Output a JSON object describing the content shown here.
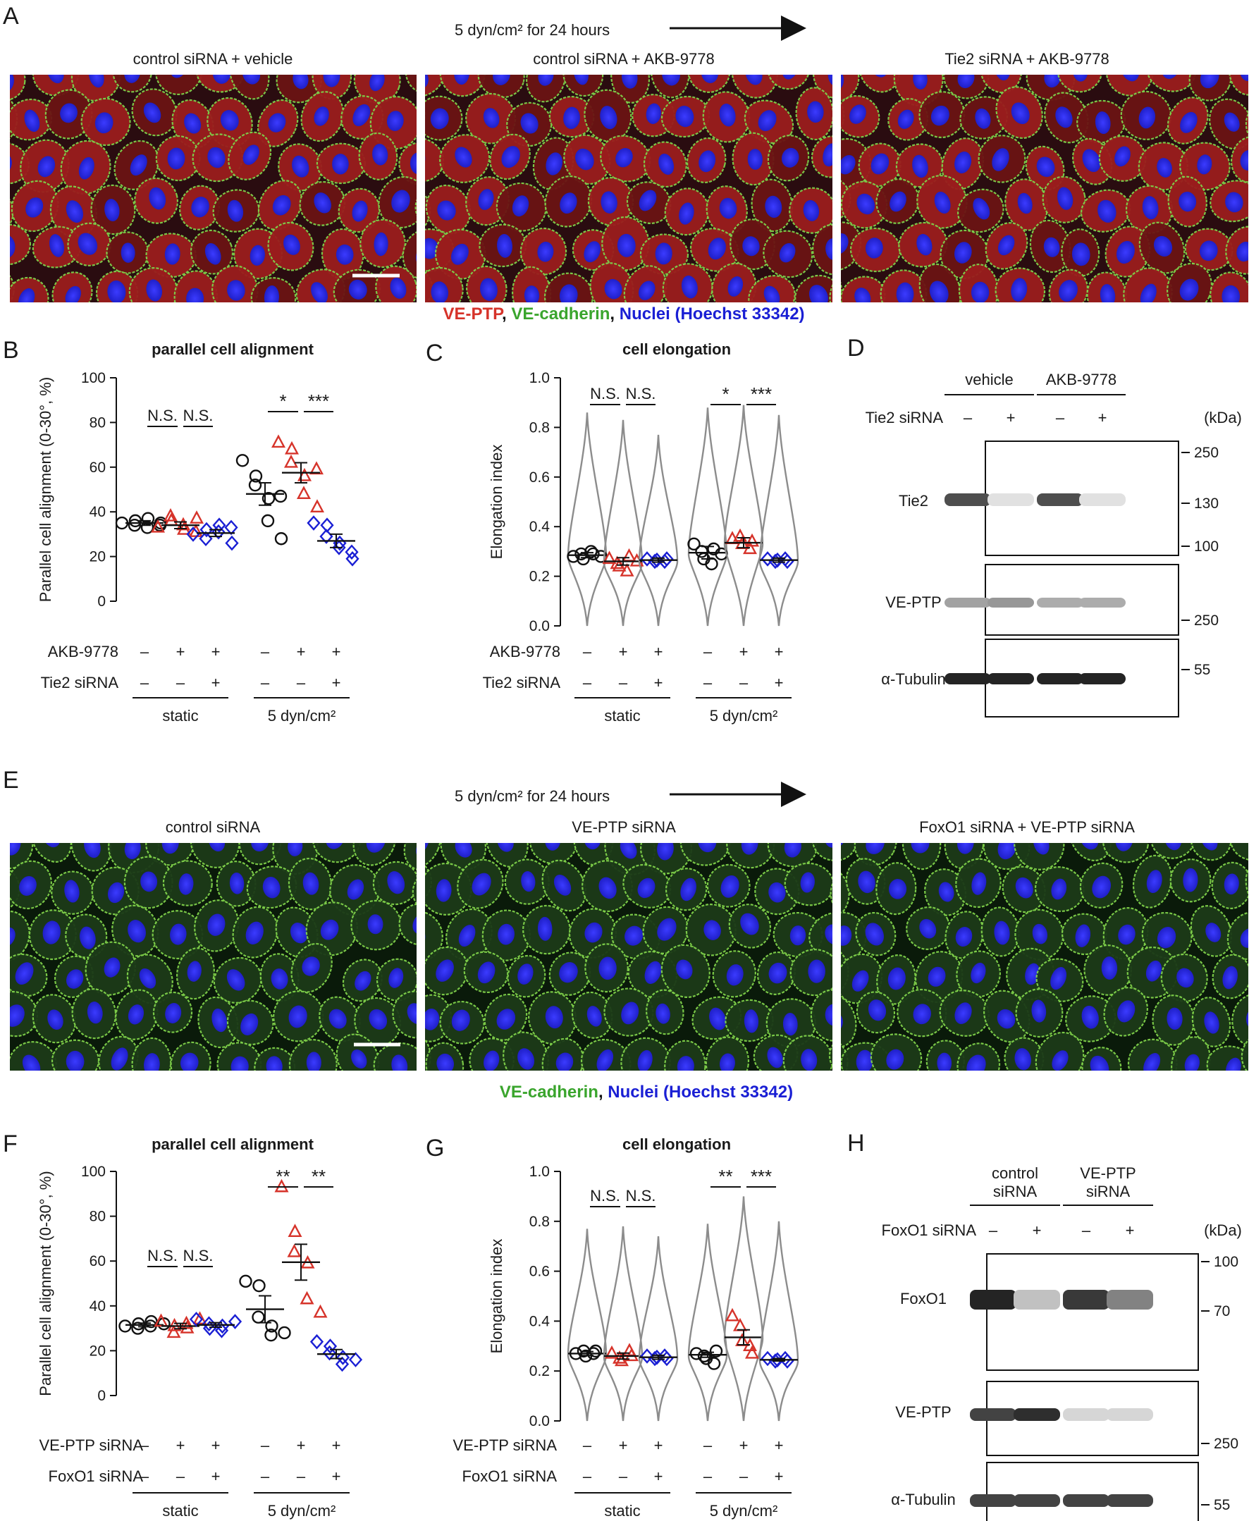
{
  "colors": {
    "red": "#d6332a",
    "green": "#3aa52d",
    "blue": "#1a1fd4",
    "black": "#111111",
    "violin": "#8c8c8c"
  },
  "panels": {
    "A": "A",
    "B": "B",
    "C": "C",
    "D": "D",
    "E": "E",
    "F": "F",
    "G": "G",
    "H": "H"
  },
  "top_flow": {
    "text": "5 dyn/cm² for 24 hours"
  },
  "imagesA": {
    "titles": [
      "control siRNA + vehicle",
      "control siRNA + AKB-9778",
      "Tie2 siRNA + AKB-9778"
    ],
    "legend": {
      "vep": "VE-PTP",
      "vec": "VE-cadherin",
      "nuc": "Nuclei (Hoechst 33342)",
      "sep": ", "
    }
  },
  "imagesE": {
    "flow": "5 dyn/cm² for 24 hours",
    "titles": [
      "control siRNA",
      "VE-PTP siRNA",
      "FoxO1 siRNA + VE-PTP siRNA"
    ],
    "legend": {
      "vec": "VE-cadherin",
      "nuc": "Nuclei (Hoechst 33342)",
      "sep": ", "
    }
  },
  "chart_data": [
    {
      "panel": "B",
      "type": "scatter",
      "title": "parallel cell alignment",
      "ylabel": "Parallel cell alignment  (0-30°, %)",
      "ylim": [
        0,
        100
      ],
      "yticks": [
        0,
        20,
        40,
        60,
        80,
        100
      ],
      "row_labels": [
        "AKB-9778",
        "Tie2 siRNA"
      ],
      "row_values": [
        [
          "–",
          "+",
          "+",
          "–",
          "+",
          "+"
        ],
        [
          "–",
          "–",
          "+",
          "–",
          "–",
          "+"
        ]
      ],
      "groups": [
        "static",
        "5 dyn/cm²"
      ],
      "series": [
        {
          "name": "control siRNA + vehicle (static)",
          "color": "black",
          "marker": "circle",
          "mean": 35,
          "sem": 1,
          "values": [
            35,
            36,
            34,
            37,
            33,
            35,
            34
          ]
        },
        {
          "name": "control siRNA + AKB-9778 (static)",
          "color": "red",
          "marker": "triangle",
          "mean": 34,
          "sem": 1.5,
          "values": [
            33,
            36,
            38,
            32,
            34,
            37,
            31
          ]
        },
        {
          "name": "Tie2 siRNA + AKB-9778 (static)",
          "color": "blue",
          "marker": "diamond",
          "mean": 30.5,
          "sem": 1.5,
          "values": [
            30,
            32,
            28,
            34,
            31,
            26,
            33
          ]
        },
        {
          "name": "control siRNA + vehicle (5 dyn/cm²)",
          "color": "black",
          "marker": "circle",
          "mean": 48,
          "sem": 5,
          "values": [
            63,
            56,
            52,
            46,
            36,
            28,
            47
          ]
        },
        {
          "name": "control siRNA + AKB-9778 (5 dyn/cm²)",
          "color": "red",
          "marker": "triangle",
          "mean": 57.5,
          "sem": 4.5,
          "values": [
            71,
            68,
            62,
            56,
            48,
            42,
            59
          ]
        },
        {
          "name": "Tie2 siRNA + AKB-9778 (5 dyn/cm²)",
          "color": "blue",
          "marker": "diamond",
          "mean": 27,
          "sem": 3,
          "values": [
            35,
            34,
            29,
            26,
            24,
            19,
            22
          ]
        }
      ],
      "significance": [
        {
          "between": [
            1,
            2
          ],
          "label": "N.S."
        },
        {
          "between": [
            2,
            3
          ],
          "label": "N.S."
        },
        {
          "between": [
            4,
            5
          ],
          "label": "*"
        },
        {
          "between": [
            5,
            6
          ],
          "label": "***"
        }
      ]
    },
    {
      "panel": "C",
      "type": "violin",
      "title": "cell elongation",
      "ylabel": "Elongation index",
      "ylim": [
        0,
        1.0
      ],
      "yticks": [
        "0.0",
        "0.2",
        "0.4",
        "0.6",
        "0.8",
        "1.0"
      ],
      "row_labels": [
        "AKB-9778",
        "Tie2 siRNA"
      ],
      "row_values": [
        [
          "–",
          "+",
          "+",
          "–",
          "+",
          "+"
        ],
        [
          "–",
          "–",
          "+",
          "–",
          "–",
          "+"
        ]
      ],
      "groups": [
        "static",
        "5 dyn/cm²"
      ],
      "series": [
        {
          "color": "black",
          "marker": "circle",
          "mean": 0.285,
          "sem": 0.01,
          "max": 0.86,
          "values": [
            0.28,
            0.29,
            0.27,
            0.3,
            0.29,
            0.28
          ]
        },
        {
          "color": "red",
          "marker": "triangle",
          "mean": 0.26,
          "sem": 0.015,
          "max": 0.83,
          "values": [
            0.27,
            0.25,
            0.24,
            0.22,
            0.28,
            0.26
          ]
        },
        {
          "color": "blue",
          "marker": "diamond",
          "mean": 0.265,
          "sem": 0.008,
          "max": 0.77,
          "values": [
            0.27,
            0.26,
            0.265,
            0.26,
            0.27
          ]
        },
        {
          "color": "black",
          "marker": "circle",
          "mean": 0.295,
          "sem": 0.025,
          "max": 0.88,
          "values": [
            0.33,
            0.3,
            0.27,
            0.25,
            0.31,
            0.29
          ]
        },
        {
          "color": "red",
          "marker": "triangle",
          "mean": 0.335,
          "sem": 0.02,
          "max": 0.89,
          "values": [
            0.35,
            0.36,
            0.33,
            0.31,
            0.34
          ]
        },
        {
          "color": "blue",
          "marker": "diamond",
          "mean": 0.265,
          "sem": 0.008,
          "max": 0.85,
          "values": [
            0.27,
            0.26,
            0.265,
            0.27,
            0.26
          ]
        }
      ],
      "significance": [
        {
          "between": [
            1,
            2
          ],
          "label": "N.S."
        },
        {
          "between": [
            2,
            3
          ],
          "label": "N.S."
        },
        {
          "between": [
            4,
            5
          ],
          "label": "*"
        },
        {
          "between": [
            5,
            6
          ],
          "label": "***"
        }
      ]
    },
    {
      "panel": "F",
      "type": "scatter",
      "title": "parallel cell alignment",
      "ylabel": "Parallel cell alignment  (0-30°, %)",
      "ylim": [
        0,
        100
      ],
      "yticks": [
        0,
        20,
        40,
        60,
        80,
        100
      ],
      "row_labels": [
        "VE-PTP siRNA",
        "FoxO1 siRNA"
      ],
      "row_values": [
        [
          "–",
          "+",
          "+",
          "–",
          "+",
          "+"
        ],
        [
          "–",
          "–",
          "+",
          "–",
          "–",
          "+"
        ]
      ],
      "groups": [
        "static",
        "5 dyn/cm²"
      ],
      "series": [
        {
          "color": "black",
          "marker": "circle",
          "mean": 31.5,
          "sem": 0.8,
          "values": [
            31,
            32,
            30,
            33,
            31,
            32
          ]
        },
        {
          "color": "red",
          "marker": "triangle",
          "mean": 31,
          "sem": 1.2,
          "values": [
            33,
            31,
            28,
            30,
            32,
            34
          ]
        },
        {
          "color": "blue",
          "marker": "diamond",
          "mean": 31.5,
          "sem": 1,
          "values": [
            34,
            30,
            32,
            31,
            29,
            33
          ]
        },
        {
          "color": "black",
          "marker": "circle",
          "mean": 38.5,
          "sem": 6,
          "values": [
            51,
            49,
            35,
            31,
            27,
            28
          ]
        },
        {
          "color": "red",
          "marker": "triangle",
          "mean": 59.5,
          "sem": 8,
          "values": [
            93,
            73,
            64,
            59,
            43,
            37
          ]
        },
        {
          "color": "blue",
          "marker": "diamond",
          "mean": 18.5,
          "sem": 2,
          "values": [
            24,
            22,
            19,
            17,
            14,
            16
          ]
        }
      ],
      "significance": [
        {
          "between": [
            1,
            2
          ],
          "label": "N.S."
        },
        {
          "between": [
            2,
            3
          ],
          "label": "N.S."
        },
        {
          "between": [
            4,
            5
          ],
          "label": "**"
        },
        {
          "between": [
            5,
            6
          ],
          "label": "**"
        }
      ]
    },
    {
      "panel": "G",
      "type": "violin",
      "title": "cell elongation",
      "ylabel": "Elongation index",
      "ylim": [
        0,
        1.0
      ],
      "yticks": [
        "0.0",
        "0.2",
        "0.4",
        "0.6",
        "0.8",
        "1.0"
      ],
      "row_labels": [
        "VE-PTP siRNA",
        "FoxO1 siRNA"
      ],
      "row_values": [
        [
          "–",
          "+",
          "+",
          "–",
          "+",
          "+"
        ],
        [
          "–",
          "–",
          "+",
          "–",
          "–",
          "+"
        ]
      ],
      "groups": [
        "static",
        "5 dyn/cm²"
      ],
      "series": [
        {
          "color": "black",
          "marker": "circle",
          "mean": 0.27,
          "sem": 0.008,
          "max": 0.77,
          "values": [
            0.27,
            0.28,
            0.26,
            0.27,
            0.28
          ]
        },
        {
          "color": "red",
          "marker": "triangle",
          "mean": 0.26,
          "sem": 0.012,
          "max": 0.78,
          "values": [
            0.27,
            0.25,
            0.24,
            0.28,
            0.26
          ]
        },
        {
          "color": "blue",
          "marker": "diamond",
          "mean": 0.255,
          "sem": 0.008,
          "max": 0.74,
          "values": [
            0.26,
            0.25,
            0.255,
            0.26,
            0.25
          ]
        },
        {
          "color": "black",
          "marker": "circle",
          "mean": 0.265,
          "sem": 0.01,
          "max": 0.79,
          "values": [
            0.27,
            0.26,
            0.25,
            0.23,
            0.28
          ]
        },
        {
          "color": "red",
          "marker": "triangle",
          "mean": 0.335,
          "sem": 0.03,
          "max": 0.9,
          "values": [
            0.42,
            0.38,
            0.32,
            0.3,
            0.27
          ]
        },
        {
          "color": "blue",
          "marker": "diamond",
          "mean": 0.245,
          "sem": 0.005,
          "max": 0.8,
          "values": [
            0.25,
            0.24,
            0.245,
            0.25,
            0.24
          ]
        }
      ],
      "significance": [
        {
          "between": [
            1,
            2
          ],
          "label": "N.S."
        },
        {
          "between": [
            2,
            3
          ],
          "label": "N.S."
        },
        {
          "between": [
            4,
            5
          ],
          "label": "**"
        },
        {
          "between": [
            5,
            6
          ],
          "label": "***"
        }
      ]
    }
  ],
  "blotD": {
    "headers": [
      "vehicle",
      "AKB-9778"
    ],
    "row_label": "Tie2 siRNA",
    "row_values": [
      "–",
      "+",
      "–",
      "+"
    ],
    "kda": "(kDa)",
    "strips": [
      {
        "label": "Tie2",
        "markers": [
          "250",
          "130",
          "100"
        ],
        "band_intensity": [
          0.75,
          0.05,
          0.75,
          0.05
        ]
      },
      {
        "label": "VE-PTP",
        "markers": [
          "250"
        ],
        "band_intensity": [
          0.35,
          0.4,
          0.3,
          0.3
        ]
      },
      {
        "label": "α-Tubulin",
        "markers": [
          "55"
        ],
        "band_intensity": [
          0.95,
          0.95,
          0.95,
          0.95
        ]
      }
    ]
  },
  "blotH": {
    "headers": [
      [
        "control",
        "siRNA"
      ],
      [
        "VE-PTP",
        "siRNA"
      ]
    ],
    "row_label": "FoxO1 siRNA",
    "row_values": [
      "–",
      "+",
      "–",
      "+"
    ],
    "kda": "(kDa)",
    "strips": [
      {
        "label": "FoxO1",
        "markers": [
          "100",
          "70"
        ],
        "band_intensity": [
          0.95,
          0.2,
          0.85,
          0.5
        ]
      },
      {
        "label": "VE-PTP",
        "markers": [
          "250"
        ],
        "band_intensity": [
          0.8,
          0.9,
          0.1,
          0.1
        ]
      },
      {
        "label": "α-Tubulin",
        "markers": [
          "55"
        ],
        "band_intensity": [
          0.8,
          0.8,
          0.8,
          0.8
        ]
      }
    ]
  }
}
